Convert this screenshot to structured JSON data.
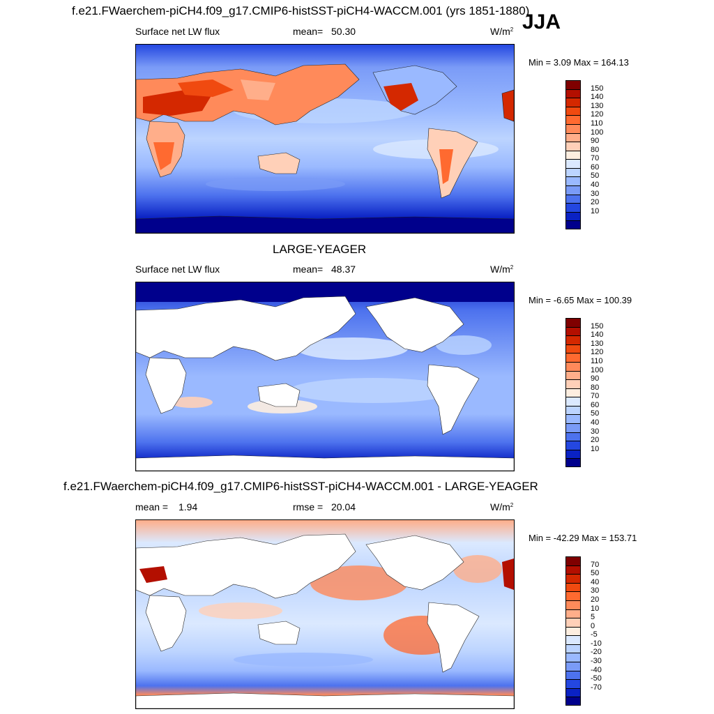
{
  "header": {
    "case_title": "f.e21.FWaerchem-piCH4.f09_g17.CMIP6-histSST-piCH4-WACCM.001 (yrs 1851-1880)",
    "season": "JJA"
  },
  "panels": [
    {
      "id": "model",
      "variable": "Surface net LW flux",
      "stat_label": "mean=",
      "stat_value": "50.30",
      "units_base": "W/m",
      "units_exp": "2",
      "minmax": "Min =   3.09 Max = 164.13"
    },
    {
      "id": "obs",
      "heading": "LARGE-YEAGER",
      "variable": "Surface net LW flux",
      "stat_label": "mean=",
      "stat_value": "48.37",
      "units_base": "W/m",
      "units_exp": "2",
      "minmax": "Min =  -6.65 Max = 100.39"
    },
    {
      "id": "diff",
      "heading": "f.e21.FWaerchem-piCH4.f09_g17.CMIP6-histSST-piCH4-WACCM.001 - LARGE-YEAGER",
      "stat_label": "mean =",
      "stat_value": "1.94",
      "stat2_label": "rmse =",
      "stat2_value": "20.04",
      "units_base": "W/m",
      "units_exp": "2",
      "minmax": "Min = -42.29 Max = 153.71"
    }
  ],
  "colorbars": {
    "absolute": {
      "labels": [
        "150",
        "140",
        "130",
        "120",
        "110",
        "100",
        "90",
        "80",
        "70",
        "60",
        "50",
        "40",
        "30",
        "20",
        "10"
      ],
      "colors": [
        "#7f0000",
        "#b30f00",
        "#d42800",
        "#f04a10",
        "#ff6a30",
        "#ff8a5a",
        "#ffae8a",
        "#ffd0b8",
        "#fdeee0",
        "#dbe9ff",
        "#bcd4ff",
        "#9ab9ff",
        "#7a9bf7",
        "#4d72ee",
        "#2447e0",
        "#0a22c4",
        "#00008c"
      ]
    },
    "difference": {
      "labels": [
        "70",
        "50",
        "40",
        "30",
        "20",
        "10",
        "5",
        "0",
        "-5",
        "-10",
        "-20",
        "-30",
        "-40",
        "-50",
        "-70"
      ],
      "colors": [
        "#7f0000",
        "#b30f00",
        "#d42800",
        "#f04a10",
        "#ff6a30",
        "#ff8a5a",
        "#ffae8a",
        "#ffd0b8",
        "#fdeee0",
        "#dbe9ff",
        "#bcd4ff",
        "#9ab9ff",
        "#7a9bf7",
        "#4d72ee",
        "#2447e0",
        "#0a22c4",
        "#00008c"
      ]
    }
  }
}
